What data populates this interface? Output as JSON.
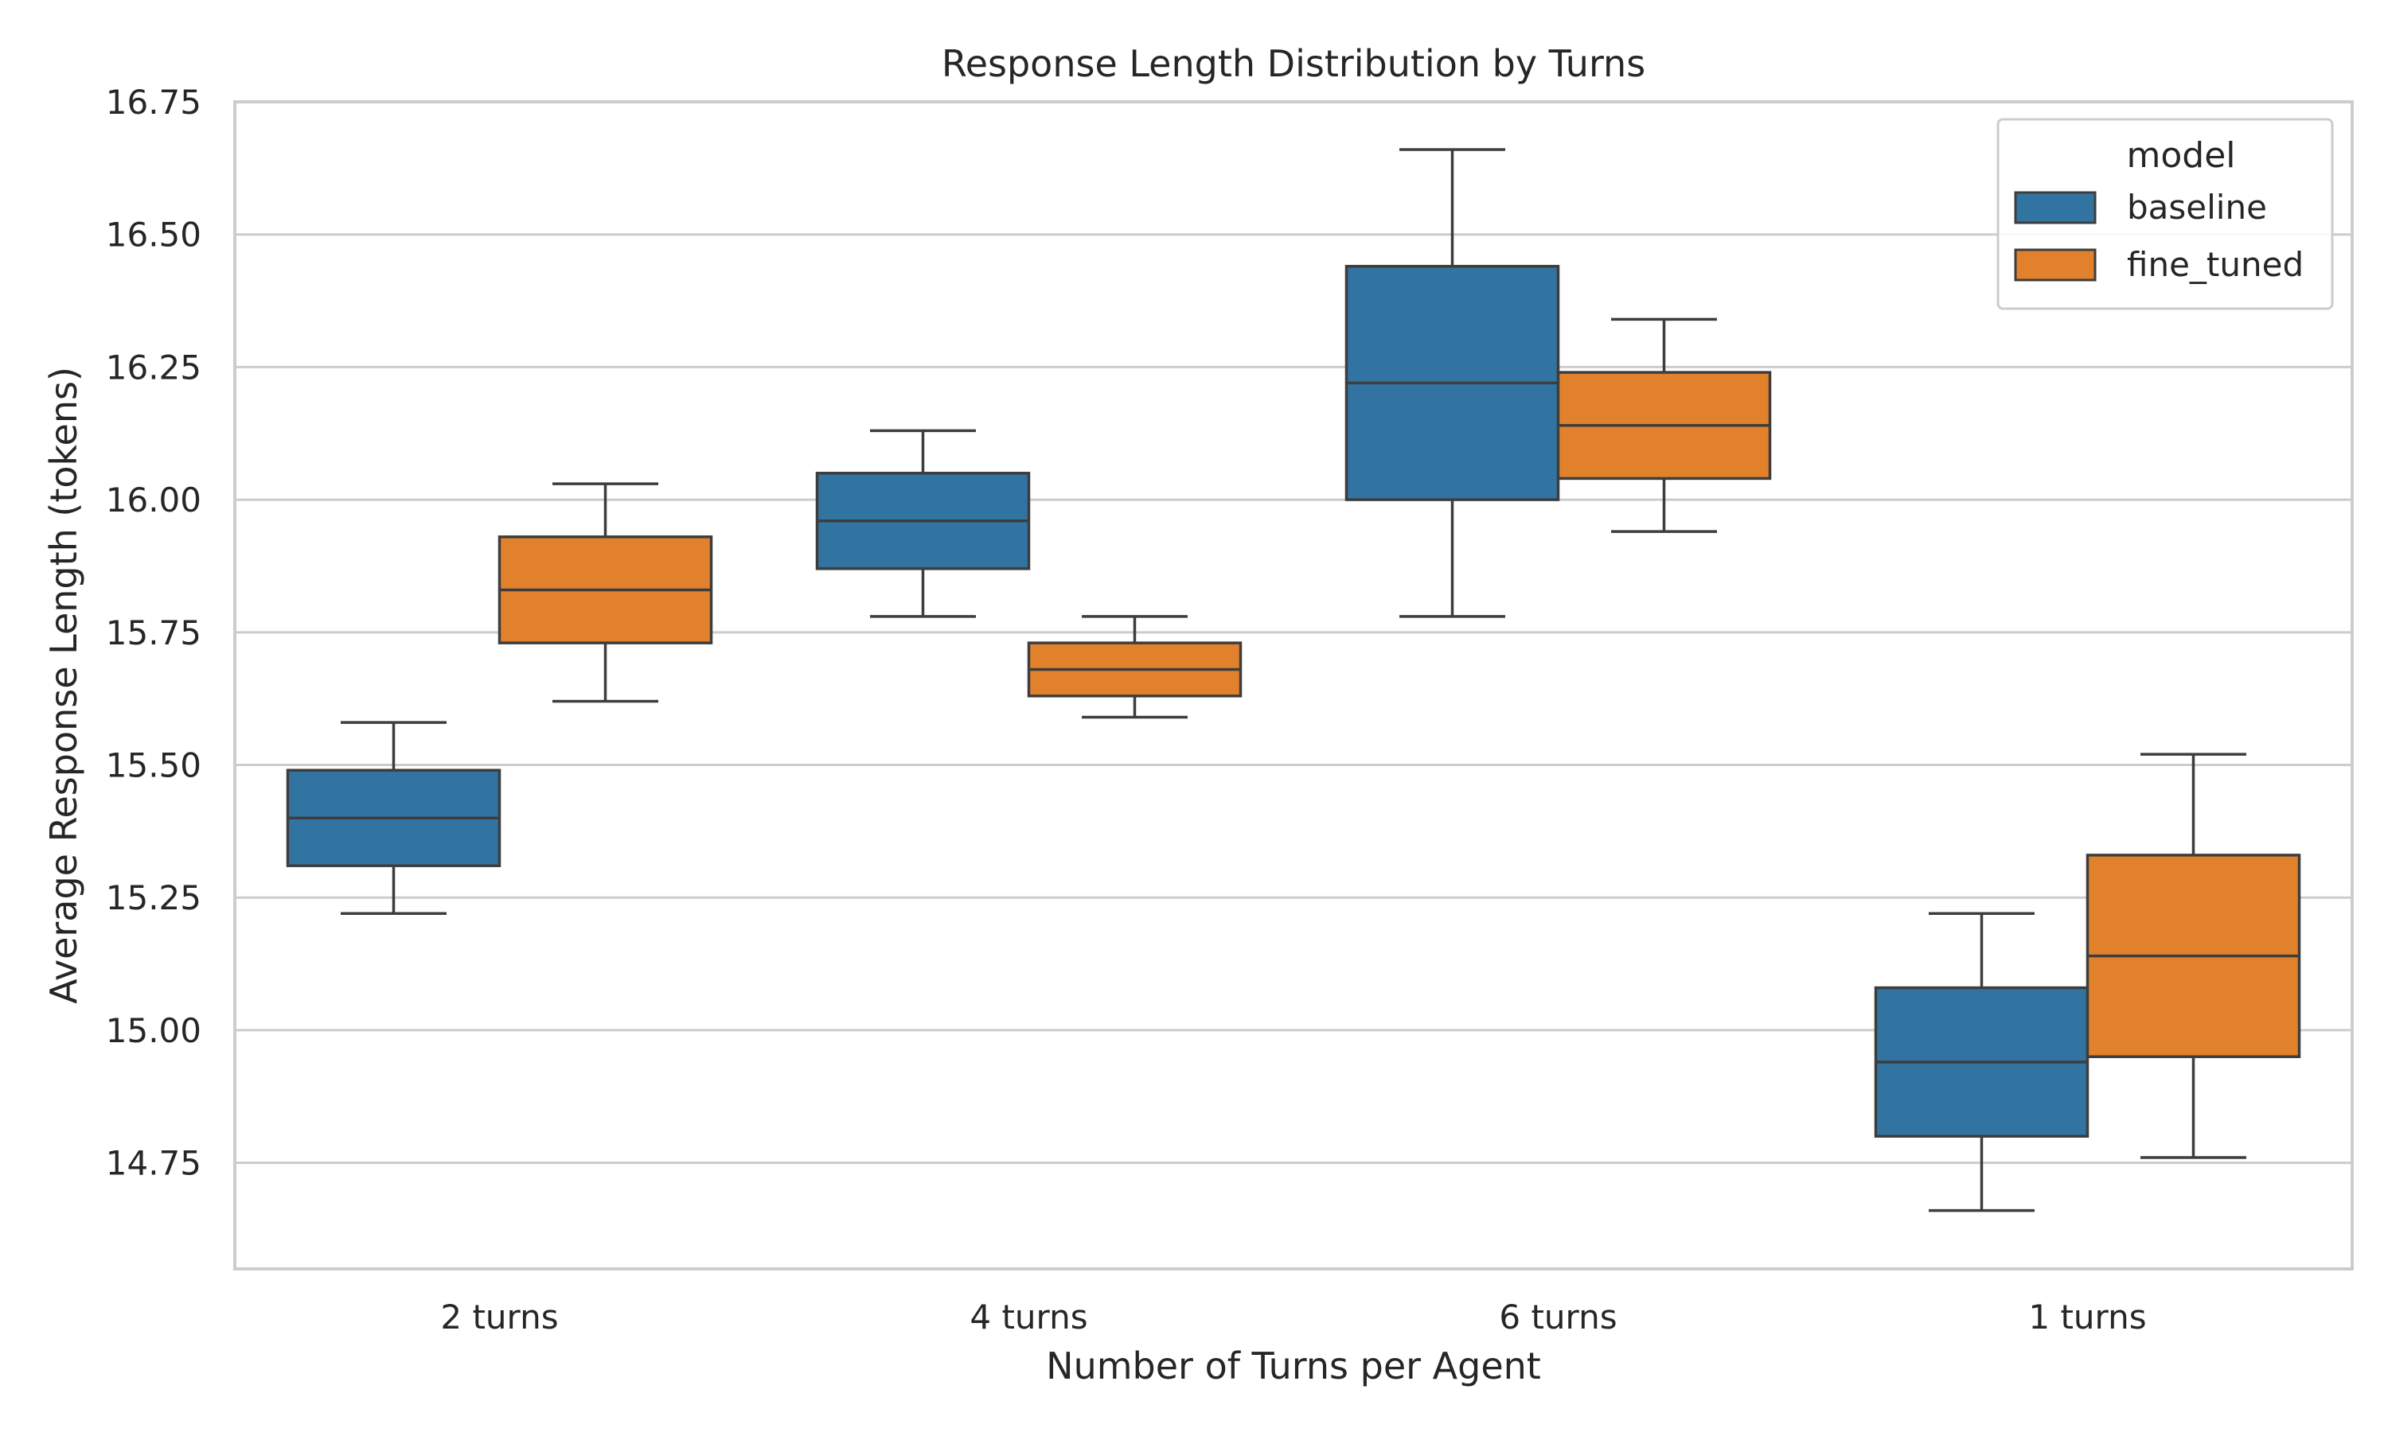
{
  "chart_data": {
    "type": "box",
    "title": "Response Length Distribution by Turns",
    "xlabel": "Number of Turns per Agent",
    "ylabel": "Average Response Length (tokens)",
    "ylim": [
      14.55,
      16.75
    ],
    "yticks": [
      "14.75",
      "15.00",
      "15.25",
      "15.50",
      "15.75",
      "16.00",
      "16.25",
      "16.50",
      "16.75"
    ],
    "grid": true,
    "legend_position": "top-right",
    "legend_title": "model",
    "categories": [
      "2 turns",
      "4 turns",
      "6 turns",
      "1 turns"
    ],
    "series": [
      {
        "name": "baseline",
        "color": "#3274a1",
        "boxes": [
          {
            "whisker_low": 15.22,
            "q1": 15.31,
            "median": 15.4,
            "q3": 15.49,
            "whisker_high": 15.58
          },
          {
            "whisker_low": 15.78,
            "q1": 15.87,
            "median": 15.96,
            "q3": 16.05,
            "whisker_high": 16.13
          },
          {
            "whisker_low": 15.78,
            "q1": 16.0,
            "median": 16.22,
            "q3": 16.44,
            "whisker_high": 16.66
          },
          {
            "whisker_low": 14.66,
            "q1": 14.8,
            "median": 14.94,
            "q3": 15.08,
            "whisker_high": 15.22
          }
        ]
      },
      {
        "name": "fine_tuned",
        "color": "#e1812c",
        "boxes": [
          {
            "whisker_low": 15.62,
            "q1": 15.73,
            "median": 15.83,
            "q3": 15.93,
            "whisker_high": 16.03
          },
          {
            "whisker_low": 15.59,
            "q1": 15.63,
            "median": 15.68,
            "q3": 15.73,
            "whisker_high": 15.78
          },
          {
            "whisker_low": 15.94,
            "q1": 16.04,
            "median": 16.14,
            "q3": 16.24,
            "whisker_high": 16.34
          },
          {
            "whisker_low": 14.76,
            "q1": 14.95,
            "median": 15.14,
            "q3": 15.33,
            "whisker_high": 15.52
          }
        ]
      }
    ]
  }
}
